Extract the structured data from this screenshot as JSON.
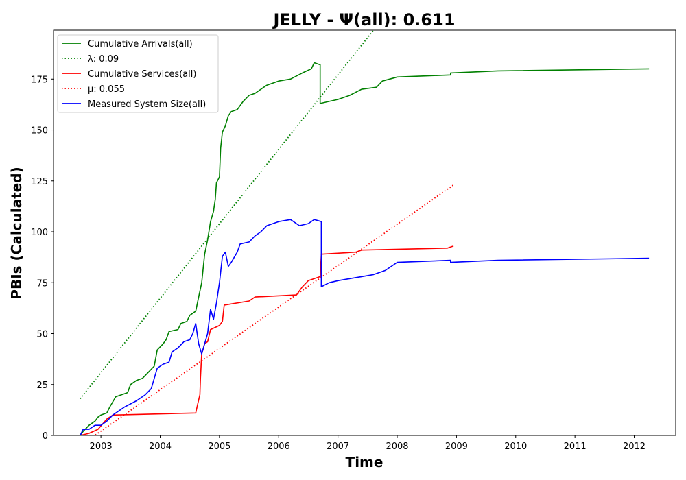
{
  "chart_data": {
    "type": "line",
    "title": "JELLY -  Ψ(all): 0.611",
    "xlabel": "Time",
    "ylabel": "PBIs (Calculated)",
    "xlim": [
      2002.2,
      2012.7
    ],
    "ylim": [
      0,
      199
    ],
    "x_ticks": [
      2003,
      2004,
      2005,
      2006,
      2007,
      2008,
      2009,
      2010,
      2011,
      2012
    ],
    "y_ticks": [
      0,
      25,
      50,
      75,
      100,
      125,
      150,
      175
    ],
    "grid": false,
    "legend_position": "top-left",
    "series": [
      {
        "name": "Cumulative Arrivals(all)",
        "color": "#008000",
        "dash": "solid",
        "points": [
          [
            2002.65,
            0
          ],
          [
            2002.7,
            2
          ],
          [
            2002.8,
            5
          ],
          [
            2002.9,
            7
          ],
          [
            2002.95,
            9
          ],
          [
            2003.0,
            10
          ],
          [
            2003.1,
            11
          ],
          [
            2003.15,
            14
          ],
          [
            2003.25,
            19
          ],
          [
            2003.35,
            20
          ],
          [
            2003.45,
            21
          ],
          [
            2003.5,
            25
          ],
          [
            2003.6,
            27
          ],
          [
            2003.7,
            28
          ],
          [
            2003.8,
            31
          ],
          [
            2003.9,
            34
          ],
          [
            2003.95,
            42
          ],
          [
            2004.05,
            45
          ],
          [
            2004.1,
            47
          ],
          [
            2004.15,
            51
          ],
          [
            2004.3,
            52
          ],
          [
            2004.35,
            55
          ],
          [
            2004.45,
            56
          ],
          [
            2004.5,
            59
          ],
          [
            2004.6,
            61
          ],
          [
            2004.65,
            68
          ],
          [
            2004.7,
            75
          ],
          [
            2004.75,
            89
          ],
          [
            2004.8,
            96
          ],
          [
            2004.85,
            105
          ],
          [
            2004.9,
            110
          ],
          [
            2004.93,
            116
          ],
          [
            2004.95,
            124
          ],
          [
            2005.0,
            127
          ],
          [
            2005.02,
            141
          ],
          [
            2005.05,
            149
          ],
          [
            2005.1,
            152
          ],
          [
            2005.15,
            157
          ],
          [
            2005.2,
            159
          ],
          [
            2005.3,
            160
          ],
          [
            2005.4,
            164
          ],
          [
            2005.5,
            167
          ],
          [
            2005.6,
            168
          ],
          [
            2005.7,
            170
          ],
          [
            2005.8,
            172
          ],
          [
            2006.0,
            174
          ],
          [
            2006.2,
            175
          ],
          [
            2006.4,
            178
          ],
          [
            2006.55,
            180
          ],
          [
            2006.6,
            183
          ],
          [
            2006.7,
            182
          ],
          [
            2006.7,
            163
          ],
          [
            2006.85,
            164
          ],
          [
            2007.0,
            165
          ],
          [
            2007.2,
            167
          ],
          [
            2007.4,
            170
          ],
          [
            2007.65,
            171
          ],
          [
            2007.75,
            174
          ],
          [
            2008.0,
            176
          ],
          [
            2008.9,
            177
          ],
          [
            2008.9,
            178
          ],
          [
            2009.7,
            179
          ],
          [
            2012.25,
            180
          ]
        ]
      },
      {
        "name": "λ: 0.09",
        "color": "#008000",
        "dash": "dotted",
        "points": [
          [
            2002.65,
            18
          ],
          [
            2007.6,
            199
          ]
        ]
      },
      {
        "name": "Cumulative Services(all)",
        "color": "#ff0000",
        "dash": "solid",
        "points": [
          [
            2002.65,
            0
          ],
          [
            2002.8,
            1
          ],
          [
            2002.95,
            3
          ],
          [
            2003.1,
            8
          ],
          [
            2003.2,
            10
          ],
          [
            2004.6,
            11
          ],
          [
            2004.63,
            15
          ],
          [
            2004.67,
            20
          ],
          [
            2004.68,
            28
          ],
          [
            2004.7,
            40
          ],
          [
            2004.75,
            45
          ],
          [
            2004.8,
            46
          ],
          [
            2004.85,
            52
          ],
          [
            2005.0,
            54
          ],
          [
            2005.05,
            56
          ],
          [
            2005.08,
            64
          ],
          [
            2005.5,
            66
          ],
          [
            2005.6,
            68
          ],
          [
            2006.3,
            69
          ],
          [
            2006.4,
            73
          ],
          [
            2006.5,
            76
          ],
          [
            2006.7,
            78
          ],
          [
            2006.72,
            89
          ],
          [
            2007.3,
            90
          ],
          [
            2007.4,
            91
          ],
          [
            2008.85,
            92
          ],
          [
            2008.95,
            93
          ]
        ]
      },
      {
        "name": "μ: 0.055",
        "color": "#ff0000",
        "dash": "dotted",
        "points": [
          [
            2002.65,
            -5
          ],
          [
            2008.95,
            123
          ]
        ]
      },
      {
        "name": "Measured System Size(all)",
        "color": "#0000ff",
        "dash": "solid",
        "points": [
          [
            2002.65,
            0
          ],
          [
            2002.7,
            3
          ],
          [
            2002.8,
            3
          ],
          [
            2002.9,
            5
          ],
          [
            2003.0,
            5
          ],
          [
            2003.1,
            7
          ],
          [
            2003.2,
            10
          ],
          [
            2003.4,
            14
          ],
          [
            2003.6,
            17
          ],
          [
            2003.75,
            20
          ],
          [
            2003.85,
            23
          ],
          [
            2003.95,
            33
          ],
          [
            2004.05,
            35
          ],
          [
            2004.15,
            36
          ],
          [
            2004.2,
            41
          ],
          [
            2004.3,
            43
          ],
          [
            2004.4,
            46
          ],
          [
            2004.5,
            47
          ],
          [
            2004.55,
            50
          ],
          [
            2004.6,
            55
          ],
          [
            2004.65,
            45
          ],
          [
            2004.7,
            40
          ],
          [
            2004.75,
            45
          ],
          [
            2004.8,
            50
          ],
          [
            2004.85,
            62
          ],
          [
            2004.9,
            57
          ],
          [
            2004.95,
            65
          ],
          [
            2005.0,
            75
          ],
          [
            2005.05,
            88
          ],
          [
            2005.1,
            90
          ],
          [
            2005.15,
            83
          ],
          [
            2005.2,
            85
          ],
          [
            2005.3,
            90
          ],
          [
            2005.35,
            94
          ],
          [
            2005.5,
            95
          ],
          [
            2005.6,
            98
          ],
          [
            2005.7,
            100
          ],
          [
            2005.8,
            103
          ],
          [
            2006.0,
            105
          ],
          [
            2006.2,
            106
          ],
          [
            2006.35,
            103
          ],
          [
            2006.5,
            104
          ],
          [
            2006.6,
            106
          ],
          [
            2006.72,
            105
          ],
          [
            2006.72,
            73
          ],
          [
            2006.85,
            75
          ],
          [
            2007.0,
            76
          ],
          [
            2007.2,
            77
          ],
          [
            2007.4,
            78
          ],
          [
            2007.6,
            79
          ],
          [
            2007.8,
            81
          ],
          [
            2008.0,
            85
          ],
          [
            2008.9,
            86
          ],
          [
            2008.9,
            85
          ],
          [
            2009.7,
            86
          ],
          [
            2012.25,
            87
          ]
        ]
      }
    ]
  }
}
